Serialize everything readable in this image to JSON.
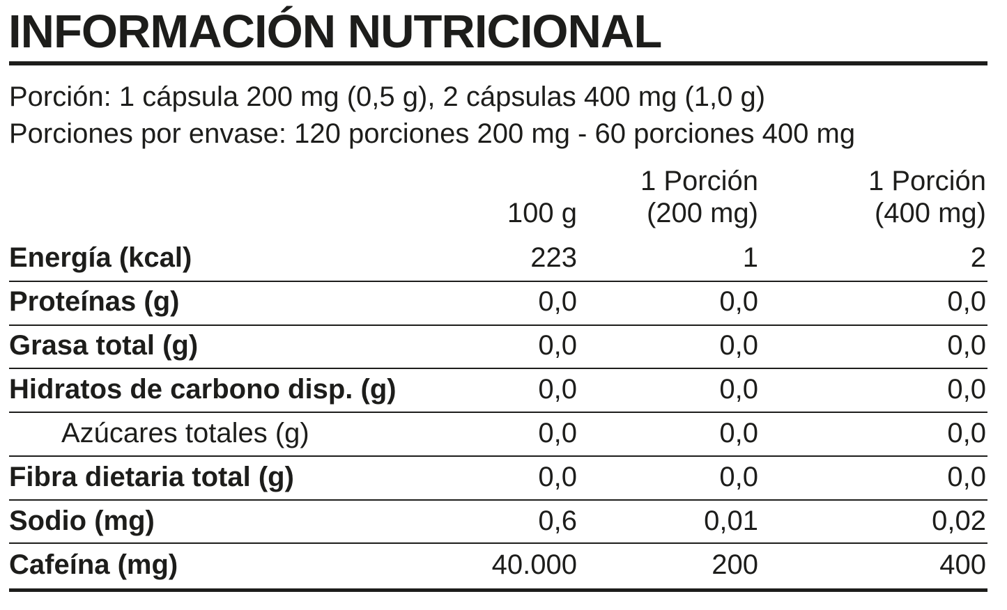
{
  "header": {
    "title": "INFORMACIÓN NUTRICIONAL",
    "serving": "Porción: 1 cápsula 200 mg (0,5 g), 2 cápsulas 400 mg (1,0 g)",
    "servings_per_container": "Porciones por envase: 120 porciones 200 mg - 60 porciones 400 mg"
  },
  "table": {
    "columns": [
      [
        "100 g"
      ],
      [
        "1 Porción",
        "(200 mg)"
      ],
      [
        "1 Porción",
        "(400 mg)"
      ]
    ],
    "rows": [
      [
        "Energía (kcal)",
        "223",
        "1",
        "2"
      ],
      [
        "Proteínas (g)",
        "0,0",
        "0,0",
        "0,0"
      ],
      [
        "Grasa total (g)",
        "0,0",
        "0,0",
        "0,0"
      ],
      [
        "Hidratos de carbono disp. (g)",
        "0,0",
        "0,0",
        "0,0"
      ],
      [
        "Azúcares totales (g)",
        "0,0",
        "0,0",
        "0,0"
      ],
      [
        "Fibra dietaria total (g)",
        "0,0",
        "0,0",
        "0,0"
      ],
      [
        "Sodio (mg)",
        "0,6",
        "0,01",
        "0,02"
      ],
      [
        "Cafeína (mg)",
        "40.000",
        "200",
        "400"
      ]
    ]
  }
}
